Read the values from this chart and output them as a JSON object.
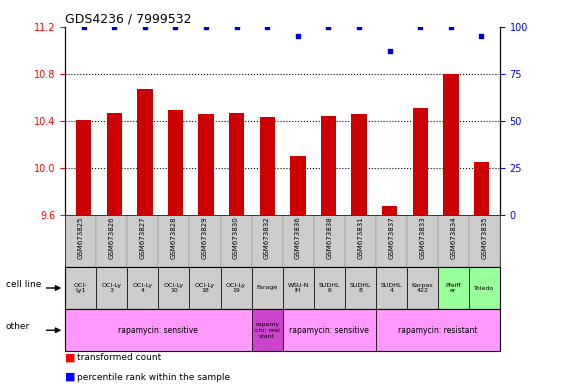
{
  "title": "GDS4236 / 7999532",
  "samples": [
    "GSM673825",
    "GSM673826",
    "GSM673827",
    "GSM673828",
    "GSM673829",
    "GSM673830",
    "GSM673832",
    "GSM673836",
    "GSM673838",
    "GSM673831",
    "GSM673837",
    "GSM673833",
    "GSM673834",
    "GSM673835"
  ],
  "transformed_counts": [
    10.41,
    10.47,
    10.67,
    10.49,
    10.46,
    10.47,
    10.43,
    10.1,
    10.44,
    10.46,
    9.68,
    10.51,
    10.8,
    10.05
  ],
  "percentile_ranks": [
    100,
    100,
    100,
    100,
    100,
    100,
    100,
    95,
    100,
    100,
    87,
    100,
    100,
    95
  ],
  "ylim_left": [
    9.6,
    11.2
  ],
  "ylim_right": [
    0,
    100
  ],
  "yticks_left": [
    9.6,
    10.0,
    10.4,
    10.8,
    11.2
  ],
  "yticks_right": [
    0,
    25,
    50,
    75,
    100
  ],
  "bar_color": "#cc0000",
  "dot_color": "#0000cc",
  "cell_line_labels": [
    "OCI-\nLy1",
    "OCI-Ly\n3",
    "OCI-Ly\n4",
    "OCI-Ly\n10",
    "OCI-Ly\n18",
    "OCI-Ly\n19",
    "Farage",
    "WSU-N\nIH",
    "SUDHL\n6",
    "SUDHL\n8",
    "SUDHL\n4",
    "Karpas\n422",
    "Pfeiff\ner",
    "Toledo"
  ],
  "cell_line_colors": [
    "#cccccc",
    "#cccccc",
    "#cccccc",
    "#cccccc",
    "#cccccc",
    "#cccccc",
    "#cccccc",
    "#cccccc",
    "#cccccc",
    "#cccccc",
    "#cccccc",
    "#cccccc",
    "#99ff99",
    "#99ff99"
  ],
  "other_group_data": [
    {
      "start": 0,
      "end": 6,
      "color": "#ff99ff",
      "label": "rapamycin: sensitive"
    },
    {
      "start": 6,
      "end": 7,
      "color": "#cc44cc",
      "label": "rapamy\ncin: resi\nstant"
    },
    {
      "start": 7,
      "end": 10,
      "color": "#ff99ff",
      "label": "rapamycin: sensitive"
    },
    {
      "start": 10,
      "end": 14,
      "color": "#ff99ff",
      "label": "rapamycin: resistant"
    }
  ],
  "bar_baseline": 9.6,
  "grid_lines": [
    10.0,
    10.4,
    10.8
  ],
  "title_fontsize": 9,
  "axis_fontsize": 7,
  "tick_fontsize": 7,
  "bar_width": 0.5
}
